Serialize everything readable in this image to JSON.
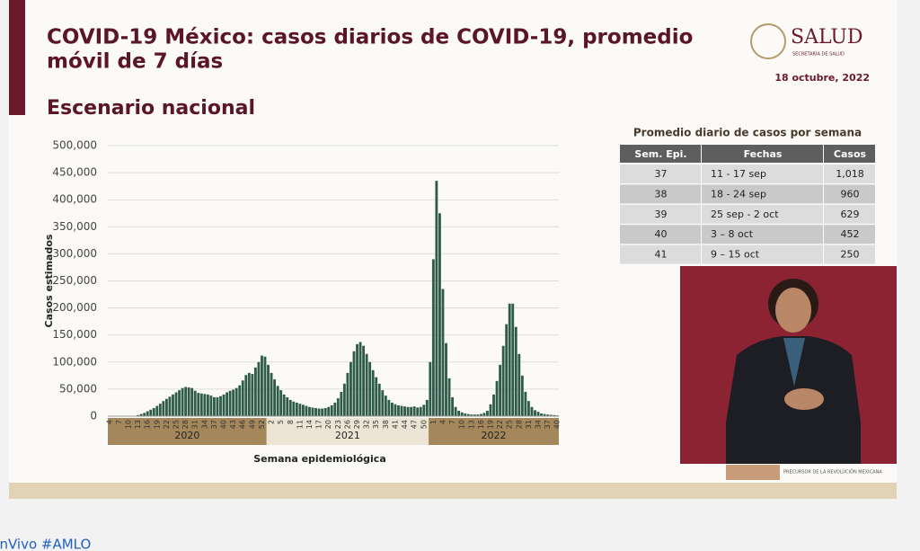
{
  "header": {
    "title_line1": "COVID-19 México: casos diarios de COVID-19, promedio",
    "title_line2": "móvil de 7 días",
    "subtitle": "Escenario nacional",
    "date": "18 octubre, 2022"
  },
  "logo": {
    "name": "SALUD",
    "sub": "SECRETARÍA DE SALUD"
  },
  "chart_data": {
    "type": "bar",
    "y_label": "Casos estimados",
    "x_label": "Semana epidemiológica",
    "color": "#2f5b4b",
    "grid": true,
    "periods": [
      "2020",
      "2021",
      "2022"
    ],
    "categories": [
      "4",
      null,
      null,
      "7",
      null,
      null,
      "10",
      null,
      null,
      "13",
      null,
      null,
      "16",
      null,
      null,
      "19",
      null,
      null,
      "22",
      null,
      null,
      "25",
      null,
      null,
      "28",
      null,
      null,
      "31",
      null,
      null,
      "34",
      null,
      null,
      "37",
      null,
      null,
      "40",
      null,
      null,
      "43",
      null,
      null,
      "46",
      null,
      null,
      "49",
      null,
      null,
      "52",
      null,
      null,
      "2",
      null,
      null,
      "5",
      null,
      null,
      "8",
      null,
      null,
      "11",
      null,
      null,
      "14",
      null,
      null,
      "17",
      null,
      null,
      "20",
      null,
      null,
      "23",
      null,
      null,
      "26",
      null,
      null,
      "29",
      null,
      null,
      "32",
      null,
      null,
      "35",
      null,
      null,
      "38",
      null,
      null,
      "41",
      null,
      null,
      "44",
      null,
      null,
      "47",
      null,
      null,
      "50",
      null,
      null,
      "1",
      null,
      null,
      "4",
      null,
      null,
      "7",
      null,
      null,
      "10",
      null,
      null,
      "13",
      null,
      null,
      "16",
      null,
      null,
      "19",
      null,
      null,
      "22",
      null,
      null,
      "25",
      null,
      null,
      "28",
      null,
      null,
      "31",
      null,
      null,
      "34",
      null,
      null,
      "37",
      null,
      null,
      "40"
    ],
    "values": [
      0,
      0,
      0,
      0,
      0,
      0,
      100,
      300,
      800,
      2000,
      4000,
      6000,
      9000,
      12000,
      15000,
      19000,
      23000,
      28000,
      32000,
      36000,
      40000,
      44000,
      48000,
      52000,
      54000,
      53000,
      52000,
      47000,
      43000,
      42000,
      41000,
      40000,
      38000,
      35000,
      35000,
      37000,
      40000,
      44000,
      47000,
      49000,
      52000,
      57000,
      66000,
      76000,
      80000,
      78000,
      90000,
      100000,
      112000,
      110000,
      95000,
      80000,
      68000,
      56000,
      48000,
      40000,
      35000,
      30000,
      27000,
      25000,
      23000,
      21000,
      19000,
      17000,
      16000,
      15000,
      14000,
      14000,
      15000,
      17000,
      20000,
      25000,
      33000,
      45000,
      60000,
      80000,
      100000,
      120000,
      133000,
      137000,
      130000,
      115000,
      100000,
      85000,
      72000,
      60000,
      48000,
      38000,
      30000,
      25000,
      22000,
      20000,
      19000,
      18000,
      17000,
      17000,
      18000,
      16000,
      17000,
      21000,
      30000,
      100000,
      290000,
      435000,
      375000,
      235000,
      135000,
      70000,
      35000,
      17000,
      10000,
      7000,
      5000,
      4000,
      3000,
      3000,
      3000,
      4000,
      6000,
      10000,
      22000,
      40000,
      65000,
      95000,
      130000,
      170000,
      208000,
      208000,
      165000,
      115000,
      75000,
      45000,
      28000,
      17000,
      11000,
      8000,
      5000,
      4000,
      3000,
      2500,
      2000,
      1500
    ],
    "ylim": [
      0,
      500000
    ],
    "yticks": [
      0,
      {
        "value": 50000,
        "label": "50,000"
      },
      {
        "value": 100000,
        "label": "100,000"
      },
      {
        "value": 150000,
        "label": "150,000"
      },
      {
        "value": 200000,
        "label": "200,000"
      },
      {
        "value": 250000,
        "label": "250,000"
      },
      {
        "value": 300000,
        "label": "300,000"
      },
      {
        "value": 350000,
        "label": "350,000"
      },
      {
        "value": 400000,
        "label": "400,000"
      },
      {
        "value": 450000,
        "label": "450,000"
      },
      {
        "value": 500000,
        "label": "500,000"
      }
    ]
  },
  "table": {
    "title": "Promedio diario de casos por semana",
    "header": [
      "Sem. Epi.",
      "Fechas",
      "Casos"
    ],
    "rows": [
      [
        "37",
        "11 - 17 sep",
        "1,018"
      ],
      [
        "38",
        "18 - 24 sep",
        "960"
      ],
      [
        "39",
        "25 sep - 2 oct",
        "629"
      ],
      [
        "40",
        "3 – 8 oct",
        "452"
      ],
      [
        "41",
        "9 – 15 oct",
        "250"
      ]
    ]
  },
  "footer": {
    "caption": "PRECURSOR DE LA REVOLUCIÓN MEXICANA",
    "ticker": "EnVivo #AMLO"
  }
}
